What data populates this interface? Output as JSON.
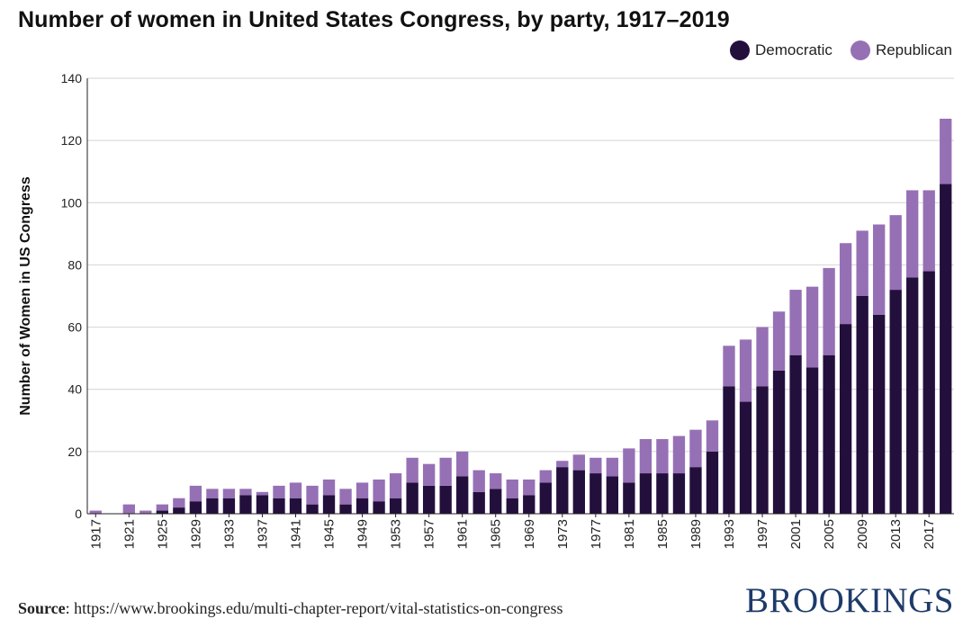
{
  "title": "Number of women in United States Congress, by party, 1917–2019",
  "legend": [
    {
      "label": "Democratic",
      "color": "#230f3c"
    },
    {
      "label": "Republican",
      "color": "#9670b5"
    }
  ],
  "source": {
    "label": "Source",
    "text": ": https://www.brookings.edu/multi-chapter-report/vital-statistics-on-congress"
  },
  "brand": "BROOKINGS",
  "chart_data": {
    "type": "bar",
    "stacked": true,
    "title": "Number of women in United States Congress, by party, 1917–2019",
    "ylabel": "Number of Women in US Congress",
    "xlabel": "",
    "ylim": [
      0,
      140
    ],
    "yticks": [
      0,
      20,
      40,
      60,
      80,
      100,
      120,
      140
    ],
    "grid": true,
    "legend_position": "top-right",
    "categories": [
      "1917",
      "1919",
      "1921",
      "1923",
      "1925",
      "1927",
      "1929",
      "1931",
      "1933",
      "1935",
      "1937",
      "1939",
      "1941",
      "1943",
      "1945",
      "1947",
      "1949",
      "1951",
      "1953",
      "1955",
      "1957",
      "1959",
      "1961",
      "1963",
      "1965",
      "1967",
      "1969",
      "1971",
      "1973",
      "1975",
      "1977",
      "1979",
      "1981",
      "1983",
      "1985",
      "1987",
      "1989",
      "1991",
      "1993",
      "1995",
      "1997",
      "1999",
      "2001",
      "2003",
      "2005",
      "2007",
      "2009",
      "2011",
      "2013",
      "2015",
      "2017",
      "2019"
    ],
    "xtick_labels": [
      "1917",
      "1921",
      "1925",
      "1929",
      "1933",
      "1937",
      "1941",
      "1945",
      "1949",
      "1953",
      "1957",
      "1961",
      "1965",
      "1969",
      "1973",
      "1977",
      "1981",
      "1985",
      "1989",
      "1993",
      "1997",
      "2001",
      "2005",
      "2009",
      "2013",
      "2017"
    ],
    "series": [
      {
        "name": "Democratic",
        "color": "#230f3c",
        "values": [
          0,
          0,
          0,
          0,
          1,
          2,
          4,
          5,
          5,
          6,
          6,
          5,
          5,
          3,
          6,
          3,
          5,
          4,
          5,
          10,
          9,
          9,
          12,
          7,
          8,
          5,
          6,
          10,
          15,
          14,
          13,
          12,
          10,
          13,
          13,
          13,
          15,
          20,
          41,
          36,
          41,
          46,
          51,
          47,
          51,
          61,
          70,
          64,
          72,
          76,
          78,
          106
        ]
      },
      {
        "name": "Republican",
        "color": "#9670b5",
        "values": [
          1,
          0,
          3,
          1,
          2,
          3,
          5,
          3,
          3,
          2,
          1,
          4,
          5,
          6,
          5,
          5,
          5,
          7,
          8,
          8,
          7,
          9,
          8,
          7,
          5,
          6,
          5,
          4,
          2,
          5,
          5,
          6,
          11,
          11,
          11,
          12,
          12,
          10,
          13,
          20,
          19,
          19,
          21,
          26,
          28,
          26,
          21,
          29,
          24,
          28,
          26,
          21
        ]
      }
    ]
  }
}
